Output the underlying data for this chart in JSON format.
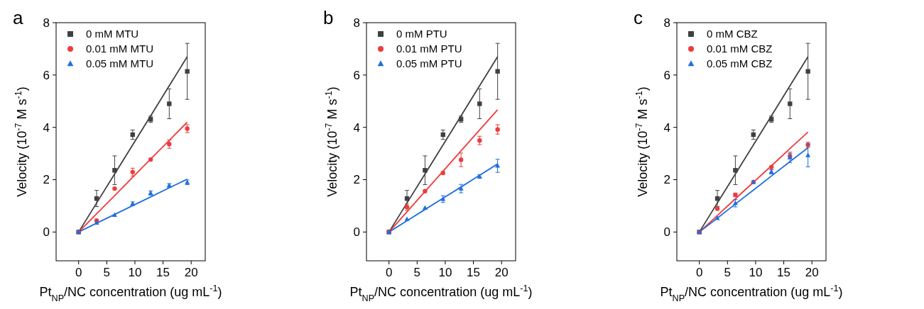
{
  "chart_data": [
    {
      "type": "scatter",
      "annotations": [
        "a"
      ],
      "xlabel": "Pt$_{NP}$/NC concentration (ug mL$^{-1}$)",
      "ylabel": "Velocity (10$^{-7}$ M s$^{-1}$)",
      "xlim": [
        -4,
        22.5
      ],
      "ylim": [
        -1.1,
        8
      ],
      "xticks": [
        0,
        5,
        10,
        15,
        20
      ],
      "yticks": [
        0,
        2,
        4,
        6,
        8
      ],
      "grid": false,
      "legend": "top left",
      "x": [
        0,
        3.2,
        6.4,
        9.6,
        12.8,
        16.1,
        19.3
      ],
      "series": [
        {
          "type": "line",
          "color": "#404040",
          "values": [
            0,
            1.11,
            2.22,
            3.33,
            4.44,
            5.59,
            6.7
          ]
        },
        {
          "type": "line",
          "color": "#ef3b3b",
          "values": [
            0,
            0.7,
            1.39,
            2.09,
            2.79,
            3.5,
            4.2
          ]
        },
        {
          "type": "line",
          "color": "#1f6fe0",
          "values": [
            0,
            0.34,
            0.67,
            1.01,
            1.34,
            1.69,
            2.02
          ]
        },
        {
          "name": "0 mM MTU",
          "color": "#404040",
          "marker": "square",
          "values": [
            0,
            1.28,
            2.36,
            3.72,
            4.31,
            4.9,
            6.14
          ],
          "errors": [
            null,
            0.31,
            0.55,
            0.18,
            0.12,
            0.57,
            1.07
          ]
        },
        {
          "name": "0.01 mM MTU",
          "color": "#ef3b3b",
          "marker": "circle",
          "values": [
            0,
            0.44,
            1.66,
            2.29,
            2.77,
            3.36,
            3.95
          ],
          "errors": [
            null,
            null,
            null,
            0.15,
            null,
            0.16,
            0.15
          ]
        },
        {
          "name": "0.05 mM MTU",
          "color": "#1f6fe0",
          "marker": "triangle",
          "values": [
            0,
            0.35,
            0.65,
            1.08,
            1.49,
            1.78,
            1.9
          ],
          "errors": [
            null,
            null,
            null,
            0.07,
            0.08,
            0.07,
            0.09
          ]
        }
      ]
    },
    {
      "type": "scatter",
      "annotations": [
        "b"
      ],
      "xlabel": "Pt$_{NP}$/NC concentration (ug mL$^{-1}$)",
      "ylabel": "Velocity (10$^{-7}$ M s$^{-1}$)",
      "xlim": [
        -4,
        22.5
      ],
      "ylim": [
        -1.1,
        8
      ],
      "xticks": [
        0,
        5,
        10,
        15,
        20
      ],
      "yticks": [
        0,
        2,
        4,
        6,
        8
      ],
      "grid": false,
      "legend": "top left",
      "x": [
        0,
        3.2,
        6.4,
        9.6,
        12.8,
        16.1,
        19.3
      ],
      "series": [
        {
          "type": "line",
          "color": "#404040",
          "values": [
            0,
            1.11,
            2.22,
            3.33,
            4.44,
            5.59,
            6.7
          ]
        },
        {
          "type": "line",
          "color": "#ef3b3b",
          "values": [
            0,
            0.77,
            1.55,
            2.32,
            3.1,
            3.9,
            4.67
          ]
        },
        {
          "type": "line",
          "color": "#1f6fe0",
          "values": [
            0,
            0.43,
            0.86,
            1.29,
            1.72,
            2.17,
            2.6
          ]
        },
        {
          "name": "0 mM PTU",
          "color": "#404040",
          "marker": "square",
          "values": [
            0,
            1.28,
            2.36,
            3.72,
            4.31,
            4.9,
            6.14
          ],
          "errors": [
            null,
            0.31,
            0.55,
            0.18,
            0.12,
            0.57,
            1.07
          ]
        },
        {
          "name": "0.01 mM PTU",
          "color": "#ef3b3b",
          "marker": "circle",
          "values": [
            0,
            0.95,
            1.56,
            2.26,
            2.76,
            3.5,
            3.92
          ],
          "errors": [
            null,
            0.12,
            null,
            null,
            0.26,
            0.16,
            0.18
          ]
        },
        {
          "name": "0.05 mM PTU",
          "color": "#1f6fe0",
          "marker": "triangle",
          "values": [
            0,
            0.49,
            0.92,
            1.26,
            1.66,
            2.12,
            2.53
          ],
          "errors": [
            null,
            null,
            null,
            0.13,
            0.16,
            0.07,
            0.25
          ]
        }
      ]
    },
    {
      "type": "scatter",
      "annotations": [
        "c"
      ],
      "xlabel": "Pt$_{NP}$/NC concentration (ug mL$^{-1}$)",
      "ylabel": "Velocity (10$^{-7}$ M s$^{-1}$)",
      "xlim": [
        -4,
        22.5
      ],
      "ylim": [
        -1.1,
        8
      ],
      "xticks": [
        0,
        5,
        10,
        15,
        20
      ],
      "yticks": [
        0,
        2,
        4,
        6,
        8
      ],
      "grid": false,
      "legend": "top left",
      "x": [
        0,
        3.2,
        6.4,
        9.6,
        12.8,
        16.1,
        19.3
      ],
      "series": [
        {
          "type": "line",
          "color": "#404040",
          "values": [
            0,
            1.11,
            2.22,
            3.33,
            4.44,
            5.59,
            6.7
          ]
        },
        {
          "type": "line",
          "color": "#ef3b3b",
          "values": [
            0,
            0.63,
            1.27,
            1.9,
            2.53,
            3.19,
            3.82
          ]
        },
        {
          "type": "line",
          "color": "#1f6fe0",
          "values": [
            0,
            0.53,
            1.07,
            1.6,
            2.14,
            2.69,
            3.22
          ]
        },
        {
          "name": "0 mM CBZ",
          "color": "#404040",
          "marker": "square",
          "values": [
            0,
            1.28,
            2.36,
            3.72,
            4.31,
            4.9,
            6.14
          ],
          "errors": [
            null,
            0.31,
            0.55,
            0.18,
            0.12,
            0.57,
            1.07
          ]
        },
        {
          "name": "0.01 mM CBZ",
          "color": "#ef3b3b",
          "marker": "circle",
          "values": [
            0,
            0.89,
            1.42,
            1.91,
            2.48,
            2.9,
            3.33
          ],
          "errors": [
            null,
            null,
            0.07,
            null,
            null,
            0.1,
            0.1
          ]
        },
        {
          "name": "0.05 mM CBZ",
          "color": "#1f6fe0",
          "marker": "triangle",
          "values": [
            0,
            0.53,
            1.1,
            1.91,
            2.3,
            2.85,
            2.93
          ],
          "errors": [
            null,
            null,
            0.14,
            null,
            0.08,
            0.2,
            0.44
          ]
        }
      ]
    }
  ]
}
